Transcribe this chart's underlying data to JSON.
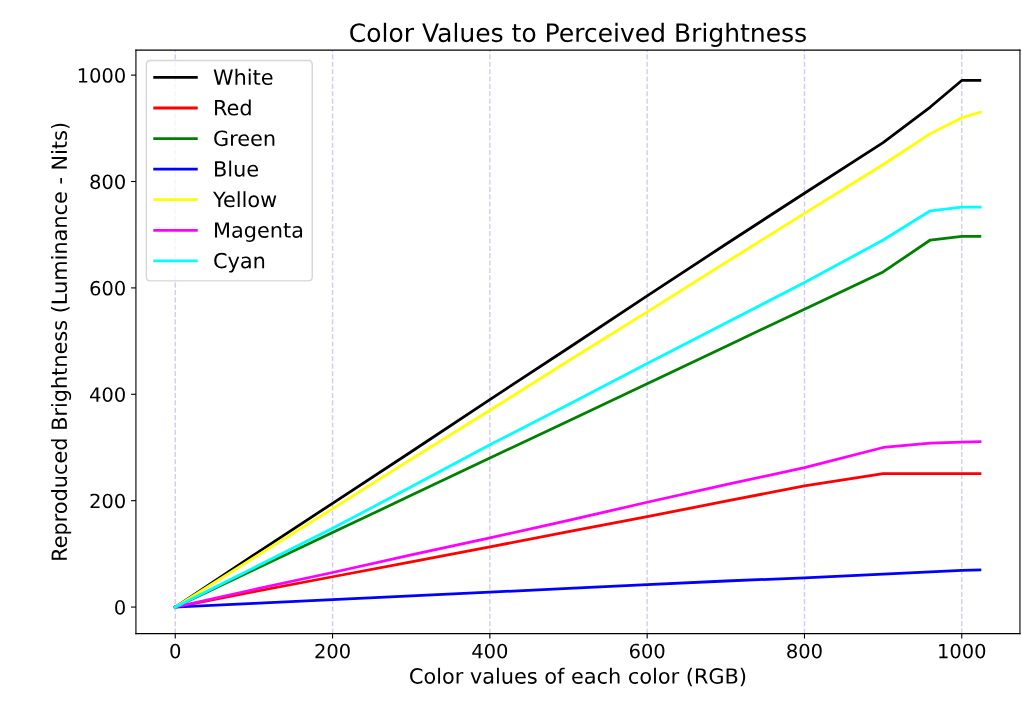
{
  "chart_data": {
    "type": "line",
    "title": "Color Values to Perceived Brightness",
    "xlabel": "Color values of each color (RGB)",
    "ylabel": "Reproduced Brightness (Luminance - Nits)",
    "x": [
      0,
      100,
      200,
      300,
      400,
      500,
      600,
      700,
      800,
      900,
      960,
      1000,
      1023
    ],
    "series": [
      {
        "name": "White",
        "color": "#000000",
        "values": [
          0,
          98,
          195,
          292,
          390,
          487,
          585,
          682,
          778,
          873,
          940,
          990,
          990
        ]
      },
      {
        "name": "Red",
        "color": "#ff0000",
        "values": [
          0,
          29,
          57,
          85,
          113,
          142,
          170,
          199,
          228,
          251,
          251,
          251,
          251
        ]
      },
      {
        "name": "Green",
        "color": "#008000",
        "values": [
          0,
          70,
          140,
          210,
          280,
          350,
          420,
          490,
          560,
          630,
          690,
          697,
          697
        ]
      },
      {
        "name": "Blue",
        "color": "#0000ff",
        "values": [
          0,
          7,
          14,
          21,
          28,
          35,
          42,
          49,
          55,
          62,
          66,
          69,
          70
        ]
      },
      {
        "name": "Yellow",
        "color": "#ffff00",
        "values": [
          0,
          93,
          185,
          278,
          370,
          463,
          555,
          648,
          740,
          832,
          890,
          920,
          930
        ]
      },
      {
        "name": "Magenta",
        "color": "#ff00ff",
        "values": [
          0,
          33,
          65,
          98,
          130,
          163,
          197,
          230,
          262,
          300,
          308,
          310,
          311
        ]
      },
      {
        "name": "Cyan",
        "color": "#00ffff",
        "values": [
          0,
          74,
          148,
          226,
          305,
          381,
          458,
          534,
          610,
          690,
          745,
          752,
          752
        ]
      }
    ],
    "xlim": [
      -50,
      1074
    ],
    "ylim": [
      -50,
      1047
    ],
    "xticks": [
      0,
      200,
      400,
      600,
      800,
      1000
    ],
    "yticks": [
      0,
      200,
      400,
      600,
      800,
      1000
    ],
    "grid": "x",
    "legend": "top left",
    "line_style": "solid",
    "marker": "none"
  }
}
